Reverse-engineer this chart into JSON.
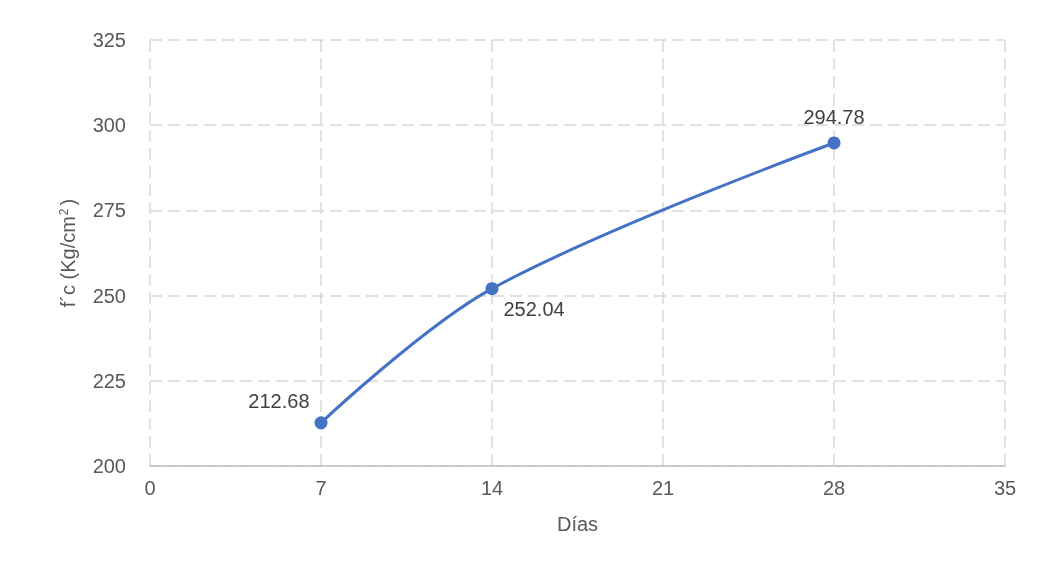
{
  "chart_data": {
    "type": "line",
    "xlabel": "Días",
    "ylabel": "f´c (Kg/cm$^{2}$)",
    "x": [
      7,
      14,
      28
    ],
    "series": [
      {
        "color": "#4472c4",
        "values": [
          212.68,
          252.04,
          294.78
        ]
      }
    ],
    "xlim": [
      0,
      35
    ],
    "xticks": [
      0,
      7,
      14,
      21,
      28,
      35
    ],
    "ylim": [
      200,
      325
    ],
    "yticks": [
      200,
      225,
      250,
      275,
      300,
      325
    ],
    "grid": true,
    "marker": "circle",
    "line_style": "solid",
    "data_labels": true
  }
}
